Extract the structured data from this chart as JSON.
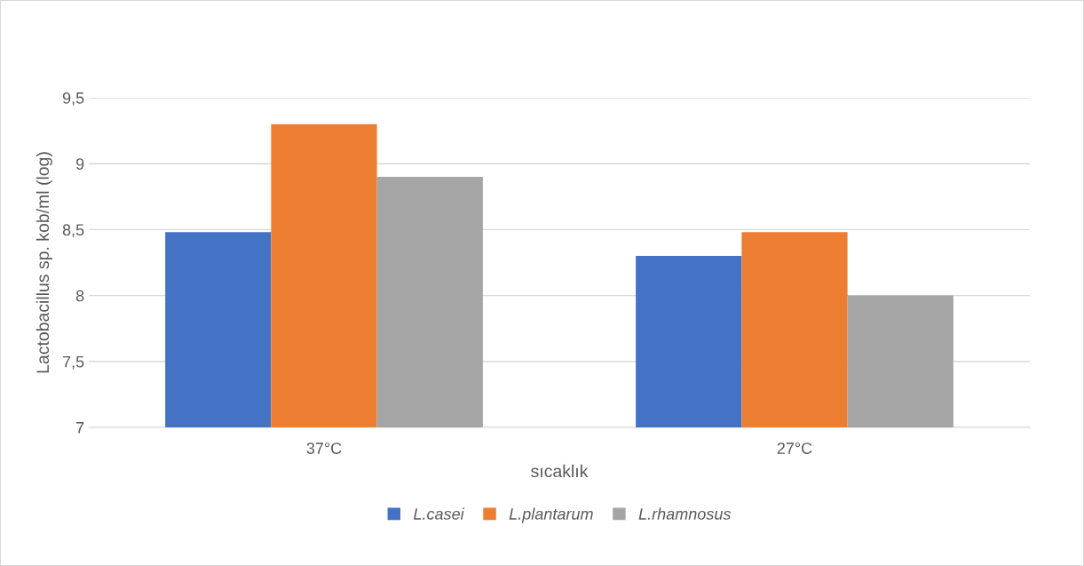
{
  "chart_data": {
    "type": "bar",
    "xlabel": "sıcaklık",
    "ylabel": "Lactobacillus sp. kob/ml (log)",
    "categories": [
      "37°C",
      "27°C"
    ],
    "series": [
      {
        "name": "L.casei",
        "color": "#4472c4",
        "values": [
          8.48,
          8.3
        ]
      },
      {
        "name": "L.plantarum",
        "color": "#ed7d31",
        "values": [
          9.3,
          8.48
        ]
      },
      {
        "name": "L.rhamnosus",
        "color": "#a5a5a5",
        "values": [
          8.9,
          8.0
        ]
      }
    ],
    "ylim": [
      7,
      9.5
    ],
    "yticks": [
      7,
      {
        "value": 7.5,
        "label": "7,5"
      },
      8,
      {
        "value": 8.5,
        "label": "8,5"
      },
      9,
      {
        "value": 9.5,
        "label": "9,5"
      }
    ],
    "grid": "y",
    "legend": "bottom"
  }
}
